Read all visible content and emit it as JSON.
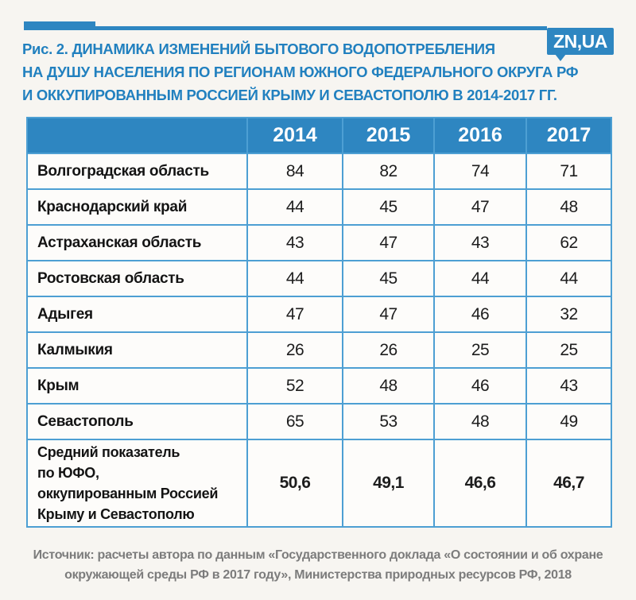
{
  "page": {
    "background": "#f7f5f1",
    "accent_blue": "#2e86c1",
    "title_blue": "#2180bf",
    "border_blue": "#4d9fd3",
    "footer_gray": "#7c7c7c"
  },
  "logo": {
    "text": "ZN,UA"
  },
  "title": {
    "lines": [
      "Рис. 2. ДИНАМИКА ИЗМЕНЕНИЙ БЫТОВОГО ВОДОПОТРЕБЛЕНИЯ",
      "НА ДУШУ НАСЕЛЕНИЯ ПО РЕГИОНАМ ЮЖНОГО ФЕДЕРАЛЬНОГО ОКРУГА РФ",
      "И ОККУПИРОВАННЫМ РОССИЕЙ КРЫМУ И СЕВАСТОПОЛЮ В 2014-2017 ГГ."
    ]
  },
  "chart_data": {
    "type": "table",
    "title": "Динамика изменений бытового водопотребления на душу населения по регионам ЮФО РФ и оккупированным Россией Крыму и Севастополю в 2014-2017 гг.",
    "columns": [
      "",
      "2014",
      "2015",
      "2016",
      "2017"
    ],
    "rows": [
      {
        "label": "Волгоградская область",
        "values": [
          "84",
          "82",
          "74",
          "71"
        ],
        "bold": false
      },
      {
        "label": "Краснодарский край",
        "values": [
          "44",
          "45",
          "47",
          "48"
        ],
        "bold": false
      },
      {
        "label": "Астраханская область",
        "values": [
          "43",
          "47",
          "43",
          "62"
        ],
        "bold": false
      },
      {
        "label": "Ростовская область",
        "values": [
          "44",
          "45",
          "44",
          "44"
        ],
        "bold": false
      },
      {
        "label": "Адыгея",
        "values": [
          "47",
          "47",
          "46",
          "32"
        ],
        "bold": false
      },
      {
        "label": "Калмыкия",
        "values": [
          "26",
          "26",
          "25",
          "25"
        ],
        "bold": false
      },
      {
        "label": "Крым",
        "values": [
          "52",
          "48",
          "46",
          "43"
        ],
        "bold": false
      },
      {
        "label": "Севастополь",
        "values": [
          "65",
          "53",
          "48",
          "49"
        ],
        "bold": false
      },
      {
        "label": "Средний показатель\nпо ЮФО,\nоккупированным Россией\nКрыму и Севастополю",
        "values": [
          "50,6",
          "49,1",
          "46,6",
          "46,7"
        ],
        "bold": true
      }
    ]
  },
  "source": {
    "lines": [
      "Источник: расчеты автора по данным «Государственного доклада «О состоянии и об охране",
      "окружающей среды РФ в 2017 году», Министерства природных ресурсов РФ, 2018"
    ]
  }
}
